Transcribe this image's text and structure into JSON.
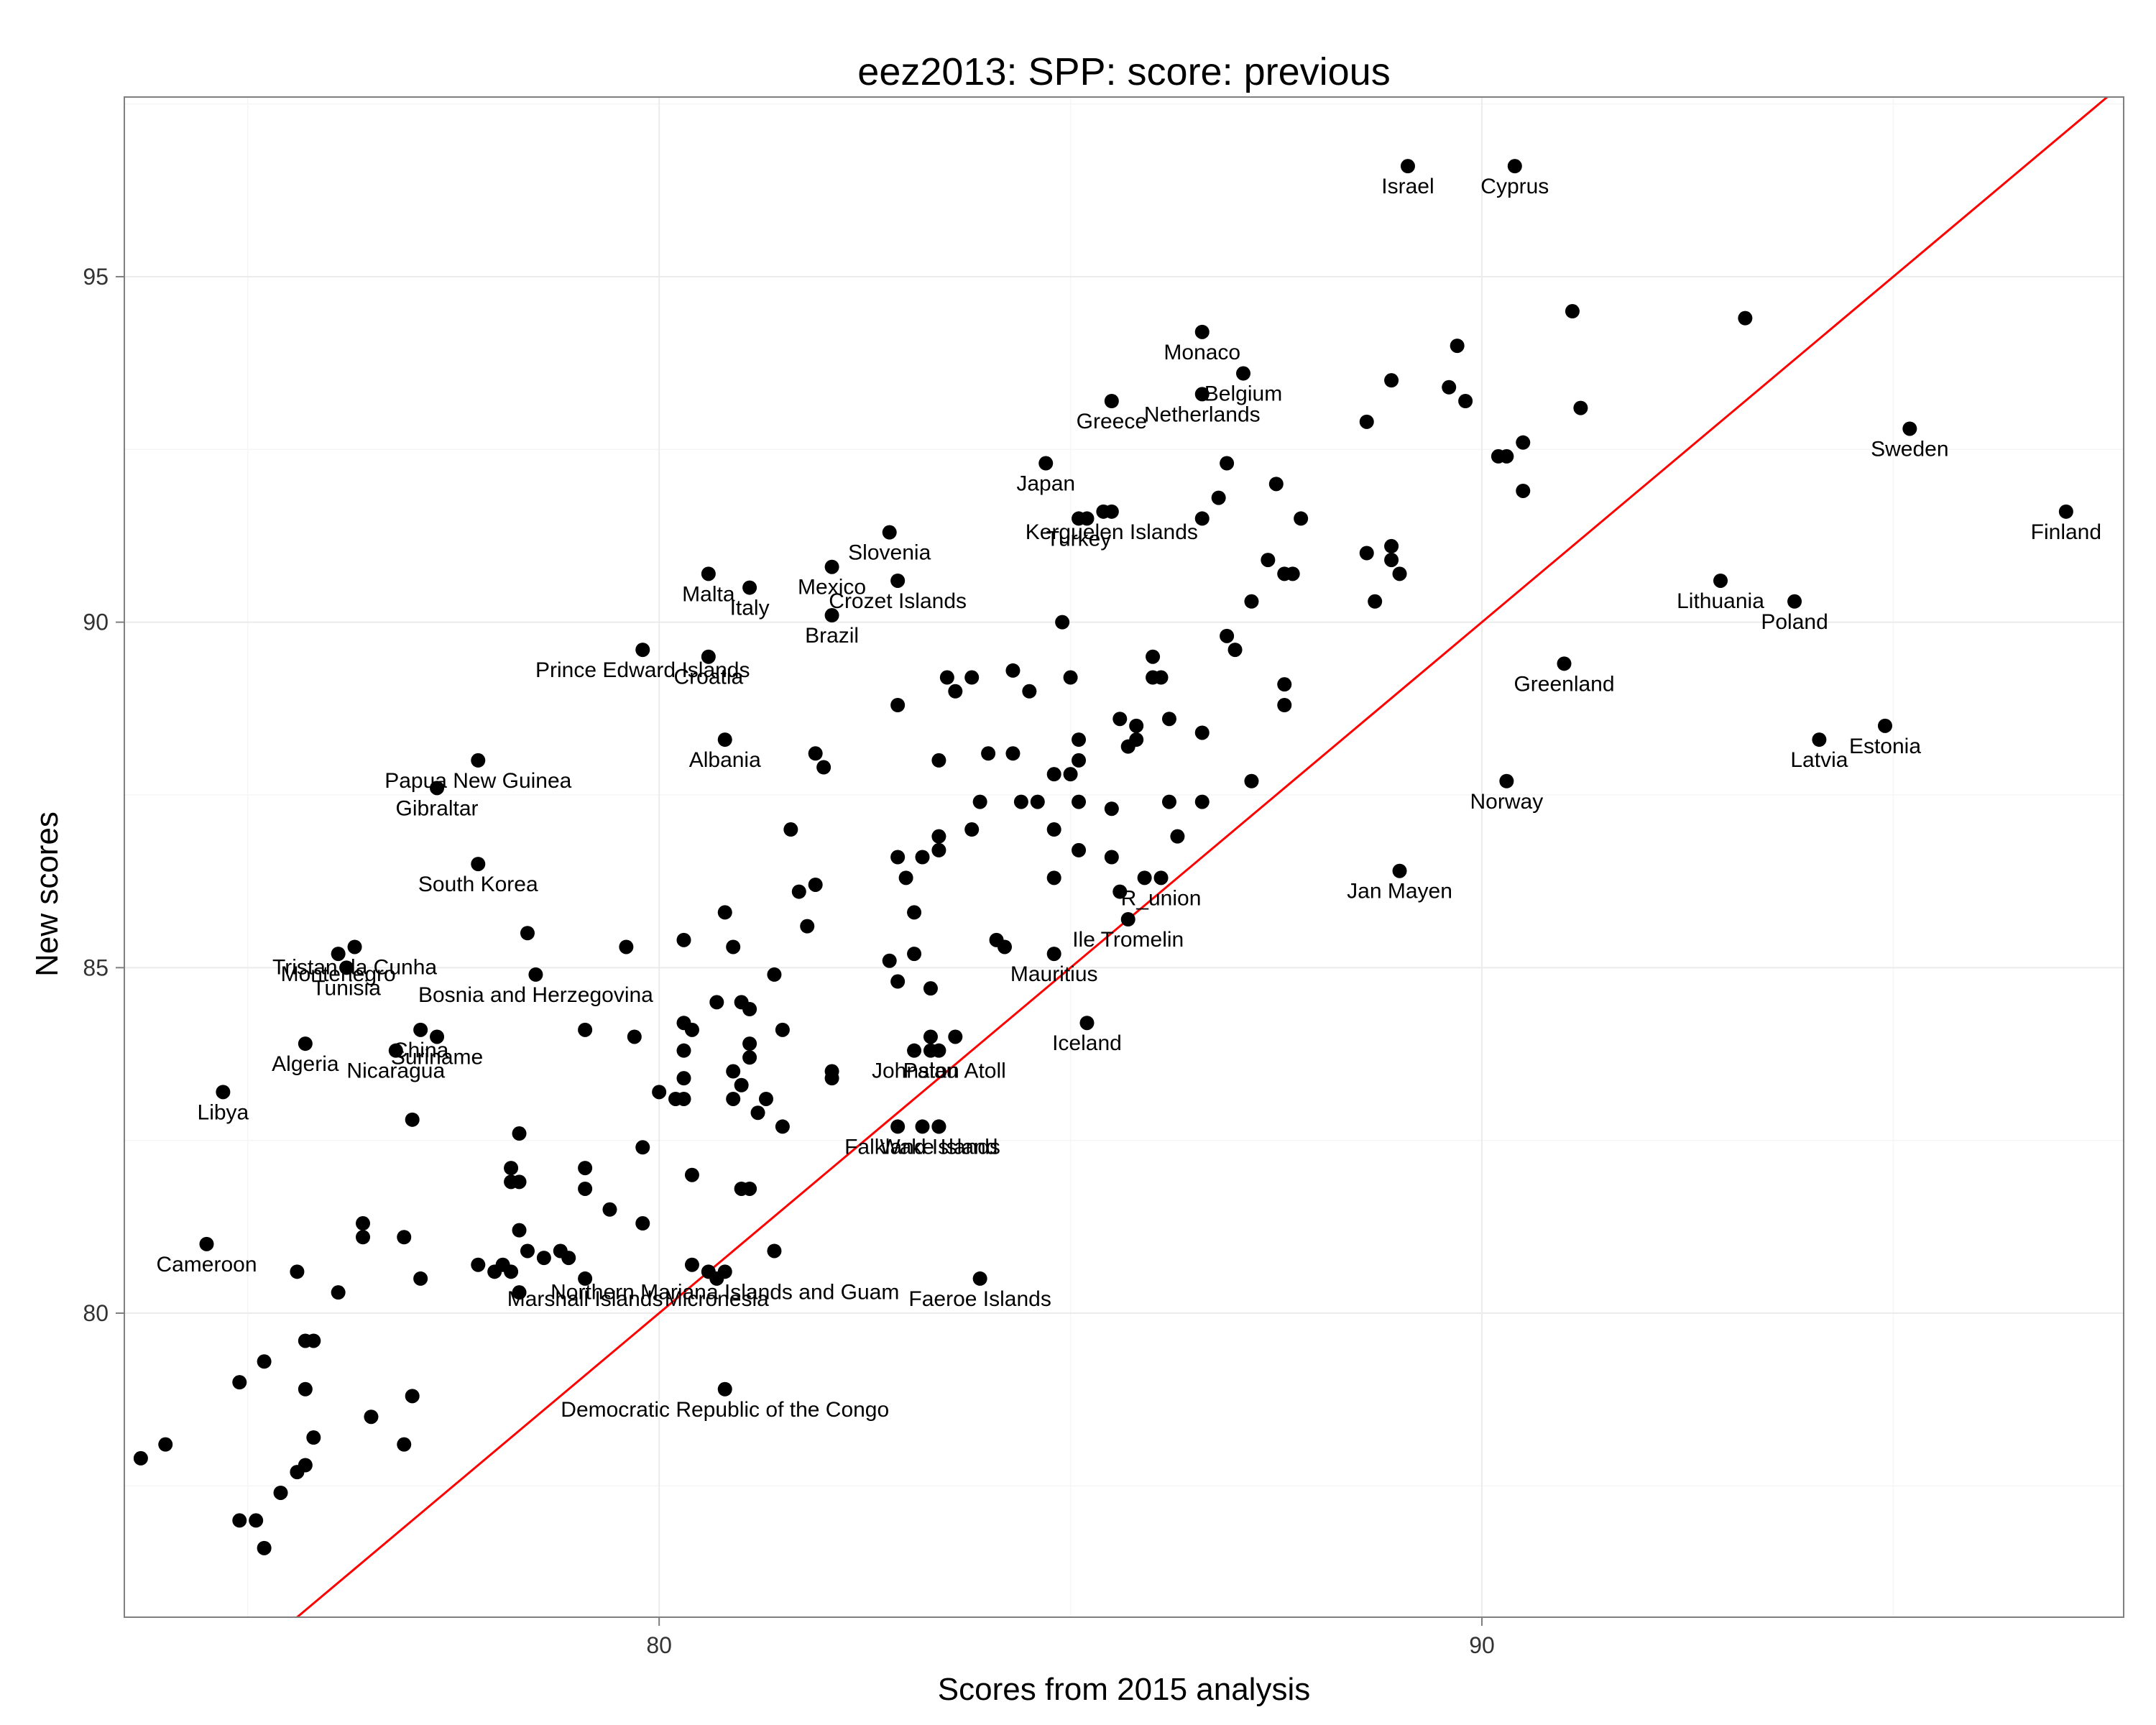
{
  "chart_data": {
    "type": "scatter",
    "title": "eez2013: SPP: score: previous",
    "xlabel": "Scores from 2015 analysis",
    "ylabel": "New scores",
    "xlim": [
      73.5,
      97.8
    ],
    "ylim": [
      75.6,
      97.6
    ],
    "xticks": [
      80,
      90
    ],
    "yticks": [
      80,
      85,
      90,
      95
    ],
    "grid": true,
    "reference_line": {
      "type": "identity",
      "color": "#ff0000"
    },
    "point_color": "#000000",
    "labeled_points": [
      {
        "label": "Israel",
        "x": 89.1,
        "y": 96.6
      },
      {
        "label": "Cyprus",
        "x": 90.4,
        "y": 96.6
      },
      {
        "label": "Monaco",
        "x": 86.6,
        "y": 94.2
      },
      {
        "label": "Belgium",
        "x": 87.1,
        "y": 93.6
      },
      {
        "label": "Netherlands",
        "x": 86.6,
        "y": 93.3
      },
      {
        "label": "Greece",
        "x": 85.5,
        "y": 93.2
      },
      {
        "label": "Japan",
        "x": 84.7,
        "y": 92.3
      },
      {
        "label": "Sweden",
        "x": 95.2,
        "y": 92.8
      },
      {
        "label": "Finland",
        "x": 97.1,
        "y": 91.6
      },
      {
        "label": "Kerguelen Islands",
        "x": 85.5,
        "y": 91.6
      },
      {
        "label": "Turkey",
        "x": 85.1,
        "y": 91.5
      },
      {
        "label": "Slovenia",
        "x": 82.8,
        "y": 91.3
      },
      {
        "label": "Malta",
        "x": 80.6,
        "y": 90.7
      },
      {
        "label": "Italy",
        "x": 81.1,
        "y": 90.5
      },
      {
        "label": "Mexico",
        "x": 82.1,
        "y": 90.8
      },
      {
        "label": "Crozet Islands",
        "x": 82.9,
        "y": 90.6
      },
      {
        "label": "Brazil",
        "x": 82.1,
        "y": 90.1
      },
      {
        "label": "Lithuania",
        "x": 92.9,
        "y": 90.6
      },
      {
        "label": "Poland",
        "x": 93.8,
        "y": 90.3
      },
      {
        "label": "Greenland",
        "x": 91.0,
        "y": 89.4
      },
      {
        "label": "Prince Edward Islands",
        "x": 79.8,
        "y": 89.6
      },
      {
        "label": "Croatia",
        "x": 80.6,
        "y": 89.5
      },
      {
        "label": "Albania",
        "x": 80.8,
        "y": 88.3
      },
      {
        "label": "Estonia",
        "x": 94.9,
        "y": 88.5
      },
      {
        "label": "Latvia",
        "x": 94.1,
        "y": 88.3
      },
      {
        "label": "Papua New Guinea",
        "x": 77.8,
        "y": 88.0
      },
      {
        "label": "Gibraltar",
        "x": 77.3,
        "y": 87.6
      },
      {
        "label": "Norway",
        "x": 90.3,
        "y": 87.7
      },
      {
        "label": "South Korea",
        "x": 77.8,
        "y": 86.5
      },
      {
        "label": "Jan Mayen",
        "x": 89.0,
        "y": 86.4
      },
      {
        "label": "R_union",
        "x": 86.1,
        "y": 86.3
      },
      {
        "label": "Ile Tromelin",
        "x": 85.7,
        "y": 85.7
      },
      {
        "label": "Tristan da Cunha",
        "x": 76.3,
        "y": 85.3
      },
      {
        "label": "Montenegro",
        "x": 76.1,
        "y": 85.2
      },
      {
        "label": "Bosnia and Herzegovina",
        "x": 78.5,
        "y": 84.9
      },
      {
        "label": "Tunisia",
        "x": 76.2,
        "y": 85.0
      },
      {
        "label": "Mauritius",
        "x": 84.8,
        "y": 85.2
      },
      {
        "label": "Algeria",
        "x": 75.7,
        "y": 83.9
      },
      {
        "label": "Suriname",
        "x": 77.3,
        "y": 84.0
      },
      {
        "label": "Nicaragua",
        "x": 76.8,
        "y": 83.8
      },
      {
        "label": "China",
        "x": 77.1,
        "y": 84.1
      },
      {
        "label": "Johnston Atoll",
        "x": 83.4,
        "y": 83.8
      },
      {
        "label": "Iceland",
        "x": 85.2,
        "y": 84.2
      },
      {
        "label": "Palau",
        "x": 83.3,
        "y": 83.8
      },
      {
        "label": "Libya",
        "x": 74.7,
        "y": 83.2
      },
      {
        "label": "Falkland Islands",
        "x": 83.2,
        "y": 82.7
      },
      {
        "label": "Wake Island",
        "x": 83.4,
        "y": 82.7
      },
      {
        "label": "Cameroon",
        "x": 74.5,
        "y": 81.0
      },
      {
        "label": "Northern Mariana Islands and Guam",
        "x": 80.8,
        "y": 80.6
      },
      {
        "label": "Marshall Islands",
        "x": 79.1,
        "y": 80.5
      },
      {
        "label": "Micronesia",
        "x": 80.7,
        "y": 80.5
      },
      {
        "label": "Faeroe Islands",
        "x": 83.9,
        "y": 80.5
      },
      {
        "label": "Democratic Republic of the Congo",
        "x": 80.8,
        "y": 78.9
      }
    ],
    "unlabeled_points": [
      [
        91.1,
        94.5
      ],
      [
        93.2,
        94.4
      ],
      [
        89.7,
        94.0
      ],
      [
        88.9,
        93.5
      ],
      [
        89.6,
        93.4
      ],
      [
        89.8,
        93.2
      ],
      [
        91.2,
        93.1
      ],
      [
        88.6,
        92.9
      ],
      [
        90.5,
        92.6
      ],
      [
        90.2,
        92.4
      ],
      [
        90.3,
        92.4
      ],
      [
        90.5,
        91.9
      ],
      [
        87.5,
        92.0
      ],
      [
        86.9,
        92.3
      ],
      [
        86.8,
        91.8
      ],
      [
        87.8,
        91.5
      ],
      [
        85.4,
        91.6
      ],
      [
        85.2,
        91.5
      ],
      [
        86.6,
        91.5
      ],
      [
        88.6,
        91.0
      ],
      [
        88.9,
        91.1
      ],
      [
        88.9,
        90.9
      ],
      [
        89.0,
        90.7
      ],
      [
        87.4,
        90.9
      ],
      [
        87.6,
        90.7
      ],
      [
        87.7,
        90.7
      ],
      [
        87.2,
        90.3
      ],
      [
        88.7,
        90.3
      ],
      [
        84.9,
        90.0
      ],
      [
        86.9,
        89.8
      ],
      [
        87.0,
        89.6
      ],
      [
        86.0,
        89.5
      ],
      [
        86.0,
        89.2
      ],
      [
        86.1,
        89.2
      ],
      [
        87.6,
        89.1
      ],
      [
        87.6,
        88.8
      ],
      [
        85.0,
        89.2
      ],
      [
        84.3,
        89.3
      ],
      [
        83.5,
        89.2
      ],
      [
        83.8,
        89.2
      ],
      [
        83.6,
        89.0
      ],
      [
        84.5,
        89.0
      ],
      [
        82.9,
        88.8
      ],
      [
        85.6,
        88.6
      ],
      [
        85.8,
        88.5
      ],
      [
        86.2,
        88.6
      ],
      [
        86.6,
        88.4
      ],
      [
        85.1,
        88.3
      ],
      [
        85.7,
        88.2
      ],
      [
        85.8,
        88.3
      ],
      [
        81.9,
        88.1
      ],
      [
        82.0,
        87.9
      ],
      [
        84.0,
        88.1
      ],
      [
        84.3,
        88.1
      ],
      [
        84.8,
        87.8
      ],
      [
        85.0,
        87.8
      ],
      [
        85.1,
        88.0
      ],
      [
        83.4,
        88.0
      ],
      [
        86.2,
        87.4
      ],
      [
        86.6,
        87.4
      ],
      [
        87.2,
        87.7
      ],
      [
        84.4,
        87.4
      ],
      [
        83.9,
        87.4
      ],
      [
        84.6,
        87.4
      ],
      [
        85.1,
        87.4
      ],
      [
        85.5,
        87.3
      ],
      [
        81.6,
        87.0
      ],
      [
        83.4,
        86.9
      ],
      [
        83.8,
        87.0
      ],
      [
        84.8,
        87.0
      ],
      [
        85.1,
        86.7
      ],
      [
        85.5,
        86.6
      ],
      [
        86.3,
        86.9
      ],
      [
        82.9,
        86.6
      ],
      [
        83.2,
        86.6
      ],
      [
        83.4,
        86.7
      ],
      [
        83.0,
        86.3
      ],
      [
        84.8,
        86.3
      ],
      [
        85.6,
        86.1
      ],
      [
        81.7,
        86.1
      ],
      [
        81.9,
        86.2
      ],
      [
        85.9,
        86.3
      ],
      [
        80.8,
        85.8
      ],
      [
        81.8,
        85.6
      ],
      [
        83.1,
        85.8
      ],
      [
        80.3,
        85.4
      ],
      [
        80.9,
        85.3
      ],
      [
        79.6,
        85.3
      ],
      [
        78.4,
        85.5
      ],
      [
        84.1,
        85.4
      ],
      [
        84.2,
        85.3
      ],
      [
        83.1,
        85.2
      ],
      [
        81.4,
        84.9
      ],
      [
        82.8,
        85.1
      ],
      [
        82.9,
        84.8
      ],
      [
        83.3,
        84.7
      ],
      [
        80.7,
        84.5
      ],
      [
        81.0,
        84.5
      ],
      [
        81.1,
        84.4
      ],
      [
        81.5,
        84.1
      ],
      [
        80.3,
        84.2
      ],
      [
        80.4,
        84.1
      ],
      [
        79.7,
        84.0
      ],
      [
        79.1,
        84.1
      ],
      [
        83.3,
        84.0
      ],
      [
        83.6,
        84.0
      ],
      [
        83.1,
        83.8
      ],
      [
        81.1,
        83.9
      ],
      [
        81.1,
        83.7
      ],
      [
        80.3,
        83.8
      ],
      [
        80.9,
        83.5
      ],
      [
        82.1,
        83.5
      ],
      [
        82.1,
        83.4
      ],
      [
        80.3,
        83.4
      ],
      [
        81.0,
        83.3
      ],
      [
        80.0,
        83.2
      ],
      [
        80.2,
        83.1
      ],
      [
        80.3,
        83.1
      ],
      [
        80.9,
        83.1
      ],
      [
        81.3,
        83.1
      ],
      [
        81.2,
        82.9
      ],
      [
        81.5,
        82.7
      ],
      [
        82.9,
        82.7
      ],
      [
        83.4,
        82.7
      ],
      [
        77.0,
        82.8
      ],
      [
        78.3,
        82.6
      ],
      [
        79.8,
        82.4
      ],
      [
        78.2,
        82.1
      ],
      [
        79.1,
        82.1
      ],
      [
        78.2,
        81.9
      ],
      [
        78.3,
        81.9
      ],
      [
        79.1,
        81.8
      ],
      [
        80.4,
        82.0
      ],
      [
        81.0,
        81.8
      ],
      [
        81.1,
        81.8
      ],
      [
        79.4,
        81.5
      ],
      [
        79.8,
        81.3
      ],
      [
        76.4,
        81.3
      ],
      [
        76.4,
        81.1
      ],
      [
        76.9,
        81.1
      ],
      [
        78.3,
        81.2
      ],
      [
        78.4,
        80.9
      ],
      [
        78.6,
        80.8
      ],
      [
        78.8,
        80.9
      ],
      [
        78.9,
        80.8
      ],
      [
        81.4,
        80.9
      ],
      [
        77.8,
        80.7
      ],
      [
        78.0,
        80.6
      ],
      [
        78.1,
        80.7
      ],
      [
        78.2,
        80.6
      ],
      [
        80.4,
        80.7
      ],
      [
        80.6,
        80.6
      ],
      [
        77.1,
        80.5
      ],
      [
        78.3,
        80.3
      ],
      [
        75.6,
        80.6
      ],
      [
        76.1,
        80.3
      ],
      [
        75.7,
        79.6
      ],
      [
        75.8,
        79.6
      ],
      [
        75.2,
        79.3
      ],
      [
        74.9,
        79.0
      ],
      [
        75.7,
        78.9
      ],
      [
        77.0,
        78.8
      ],
      [
        76.5,
        78.5
      ],
      [
        75.8,
        78.2
      ],
      [
        76.9,
        78.1
      ],
      [
        73.7,
        77.9
      ],
      [
        74.0,
        78.1
      ],
      [
        75.7,
        77.8
      ],
      [
        75.6,
        77.7
      ],
      [
        75.4,
        77.4
      ],
      [
        74.9,
        77.0
      ],
      [
        75.1,
        77.0
      ],
      [
        75.2,
        76.6
      ]
    ]
  }
}
